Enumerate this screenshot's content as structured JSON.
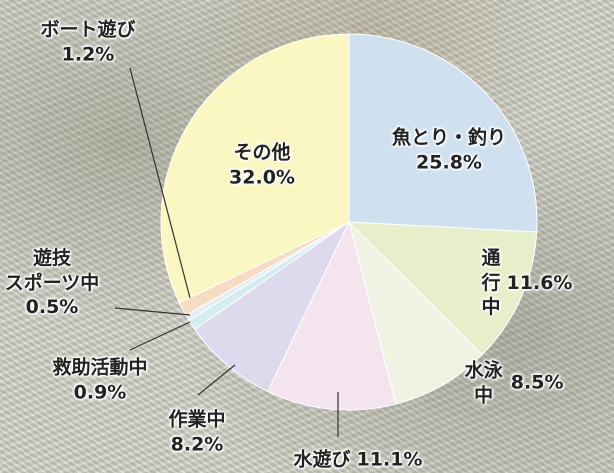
{
  "chart_data": {
    "type": "pie",
    "categories": [
      "魚とり・釣り",
      "通行中",
      "水泳中",
      "水遊び",
      "作業中",
      "救助活動中",
      "遊技\nスポーツ中",
      "ボート遊び",
      "その他"
    ],
    "values": [
      25.8,
      11.6,
      8.5,
      11.1,
      8.2,
      0.9,
      0.5,
      1.2,
      32.0
    ],
    "value_labels": [
      "25.8%",
      "11.6%",
      "8.5%",
      "11.1%",
      "8.2%",
      "0.9%",
      "0.5%",
      "1.2%",
      "32.0%"
    ],
    "colors": [
      "#cfe0ef",
      "#e6efc9",
      "#f1f2e4",
      "#f4e4ee",
      "#dcdaec",
      "#d3ecee",
      "#e3eef2",
      "#f6dcc2",
      "#fbf7c2"
    ]
  }
}
